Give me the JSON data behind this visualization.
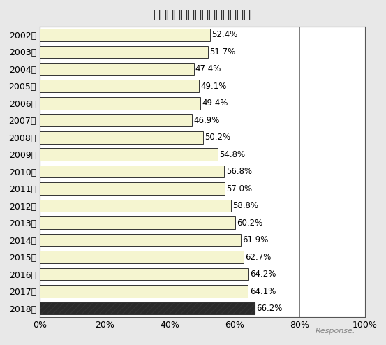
{
  "title": "チャイルドシート使用率の推移",
  "years": [
    "2002年",
    "2003年",
    "2004年",
    "2005年",
    "2006年",
    "2007年",
    "2008年",
    "2009年",
    "2010年",
    "2011年",
    "2012年",
    "2013年",
    "2014年",
    "2015年",
    "2016年",
    "2017年",
    "2018年"
  ],
  "values": [
    52.4,
    51.7,
    47.4,
    49.1,
    49.4,
    46.9,
    50.2,
    54.8,
    56.8,
    57.0,
    58.8,
    60.2,
    61.9,
    62.7,
    64.2,
    64.1,
    66.2
  ],
  "labels": [
    "52.4%",
    "51.7%",
    "47.4%",
    "49.1%",
    "49.4%",
    "46.9%",
    "50.2%",
    "54.8%",
    "56.8%",
    "57.0%",
    "58.8%",
    "60.2%",
    "61.9%",
    "62.7%",
    "64.2%",
    "64.1%",
    "66.2%"
  ],
  "bar_color_normal": "#f5f5d0",
  "bar_color_last": "#2a2a2a",
  "bar_edge_color": "#333333",
  "hatch_last": "////",
  "background_color": "#e8e8e8",
  "plot_background_color": "#ffffff",
  "title_fontsize": 12,
  "label_fontsize": 8.5,
  "tick_fontsize": 9,
  "xlim": [
    0,
    100
  ],
  "xticks": [
    0,
    20,
    40,
    60,
    80,
    100
  ],
  "xtick_labels": [
    "0%",
    "20%",
    "40%",
    "60%",
    "80%",
    "100%"
  ],
  "vline_x": 80,
  "vline_color": "#666666",
  "bar_height": 0.72
}
